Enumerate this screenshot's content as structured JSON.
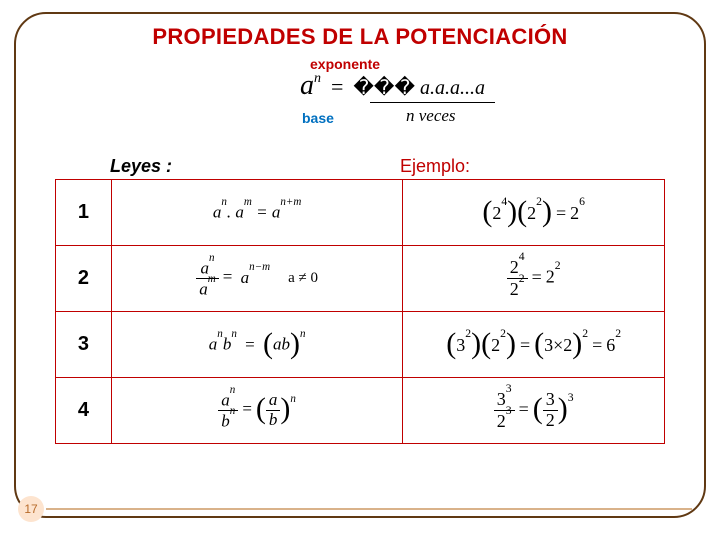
{
  "title": "PROPIEDADES DE LA POTENCIACIÓN",
  "definition": {
    "label_exp": "exponente",
    "label_base": "base",
    "lhs_base": "a",
    "lhs_exp": "n",
    "rhs": "a.a.a...a",
    "garble": "���",
    "underbrace_label": "n veces"
  },
  "headers": {
    "laws": "Leyes :",
    "examples": "Ejemplo:"
  },
  "rows": [
    {
      "n": "1",
      "law_html": "a<sup>n</sup>. a<sup>m</sup> = a<sup>n+m</sup>",
      "ex_html": "<span class='bigpar'>(</span>2<sup>4</sup><span class='bigpar'>)</span><span class='bigpar'>(</span>2<sup>2</sup><span class='bigpar'>)</span><span class='eqs'>=</span>2<sup>6</sup>"
    },
    {
      "n": "2",
      "law_html": "<span class='frac'><span class='top'>a<sup>n</sup></span><span class='bot'>a<sup>m</sup></span></span><span class='eqs'>=</span> a<sup>n−m</sup><span class='note'>a ≠ 0</span>",
      "ex_html": "<span class='frac'><span class='top'>2<sup>4</sup></span><span class='bot'>2<sup>2</sup></span></span><span class='eqs'>=</span>2<sup>2</sup>"
    },
    {
      "n": "3",
      "law_html": "a<sup>n</sup>b<sup>n</sup> <span class='eqs'>=</span> <span class='bigpar'>(</span>ab<span class='bigpar'>)</span><sup>n</sup>",
      "ex_html": "<span class='bigpar'>(</span>3<sup>2</sup><span class='bigpar'>)</span><span class='bigpar'>(</span>2<sup>2</sup><span class='bigpar'>)</span><span class='eqs'>=</span><span class='bigpar'>(</span>3×2<span class='bigpar'>)</span><sup>2</sup><span class='eqs'>=</span>6<sup>2</sup>"
    },
    {
      "n": "4",
      "law_html": "<span class='frac'><span class='top'>a<sup>n</sup></span><span class='bot'>b<sup>n</sup></span></span><span class='eqs'>=</span><span class='bigpar'>(</span><span class='frac'><span class='top'>a</span><span class='bot'>b</span></span><span class='bigpar'>)</span><sup>n</sup>",
      "ex_html": "<span class='frac'><span class='top'>3<sup>3</sup></span><span class='bot'>2<sup>3</sup></span></span><span class='eqs'>=</span><span class='bigpar'>(</span><span class='frac'><span class='top'>3</span><span class='bot'>2</span></span><span class='bigpar'>)</span><sup>3</sup>"
    }
  ],
  "page_number": "17",
  "colors": {
    "title": "#c00000",
    "exp_label": "#c00000",
    "base_label": "#0070c0",
    "example_header": "#c00000",
    "table_border": "#c00000",
    "frame_border": "#603913",
    "page_circle_bg": "#fde4cf",
    "page_circle_text": "#b86b2a",
    "bar": "#d9b28a"
  }
}
